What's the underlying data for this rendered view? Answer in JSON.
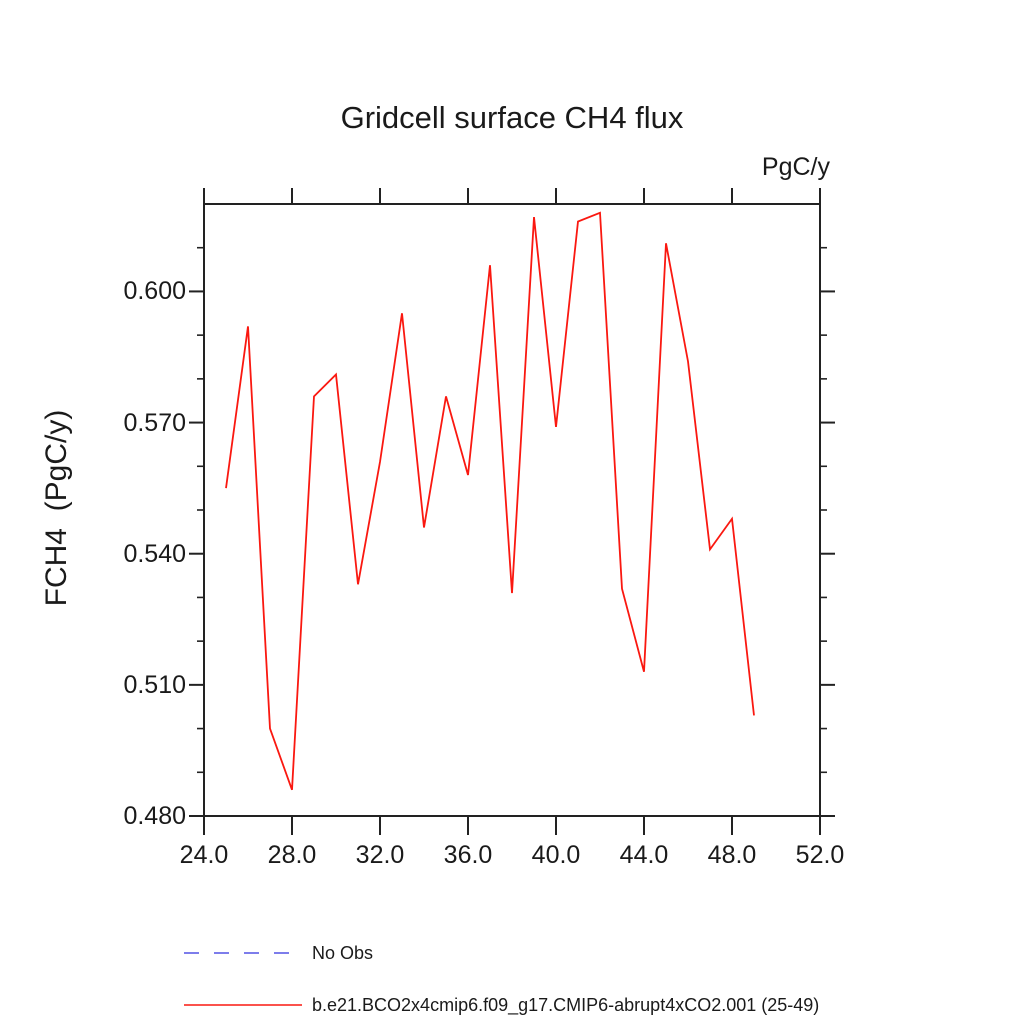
{
  "chart": {
    "title": "Gridcell surface CH4 flux",
    "top_right_units": "PgC/y",
    "y_axis_title": "FCH4  (PgC/y)"
  },
  "axes": {
    "x": {
      "min": 24.0,
      "max": 52.0,
      "tick_values": [
        24,
        28,
        32,
        36,
        40,
        44,
        48,
        52
      ],
      "tick_labels": [
        "24.0",
        "28.0",
        "32.0",
        "36.0",
        "40.0",
        "44.0",
        "48.0",
        "52.0"
      ]
    },
    "y": {
      "min": 0.48,
      "max": 0.62,
      "major_tick_values": [
        0.48,
        0.51,
        0.54,
        0.57,
        0.6
      ],
      "major_tick_labels": [
        "0.480",
        "0.510",
        "0.540",
        "0.570",
        "0.600"
      ],
      "minor_tick_values": [
        0.49,
        0.5,
        0.52,
        0.53,
        0.55,
        0.56,
        0.58,
        0.59,
        0.61
      ]
    }
  },
  "chart_data": {
    "type": "line",
    "title": "Gridcell surface CH4 flux",
    "xlabel": "",
    "ylabel": "FCH4  (PgC/y)",
    "units": "PgC/y",
    "xlim": [
      24.0,
      52.0
    ],
    "ylim": [
      0.48,
      0.62
    ],
    "grid": false,
    "legend_position": "bottom-left",
    "x": [
      25,
      26,
      27,
      28,
      29,
      30,
      31,
      32,
      33,
      34,
      35,
      36,
      37,
      38,
      39,
      40,
      41,
      42,
      43,
      44,
      45,
      46,
      47,
      48,
      49
    ],
    "series": [
      {
        "name": "b.e21.BCO2x4cmip6.f09_g17.CMIP6-abrupt4xCO2.001 (25-49)",
        "color": "#fa1810",
        "line_style": "solid",
        "values": [
          0.555,
          0.592,
          0.5,
          0.486,
          0.576,
          0.581,
          0.533,
          0.561,
          0.595,
          0.546,
          0.576,
          0.558,
          0.606,
          0.531,
          0.617,
          0.569,
          0.616,
          0.618,
          0.532,
          0.513,
          0.611,
          0.584,
          0.541,
          0.548,
          0.503
        ]
      },
      {
        "name": "No Obs",
        "color": "#7d7deb",
        "line_style": "dashed",
        "values": []
      }
    ]
  },
  "legend": {
    "items": [
      {
        "label": "No Obs",
        "color": "#7d7deb",
        "style": "dashed"
      },
      {
        "label": "b.e21.BCO2x4cmip6.f09_g17.CMIP6-abrupt4xCO2.001 (25-49)",
        "color": "#fa1810",
        "style": "solid"
      }
    ]
  },
  "colors": {
    "frame": "#222222",
    "text": "#1a1a1a",
    "background": "#ffffff"
  }
}
